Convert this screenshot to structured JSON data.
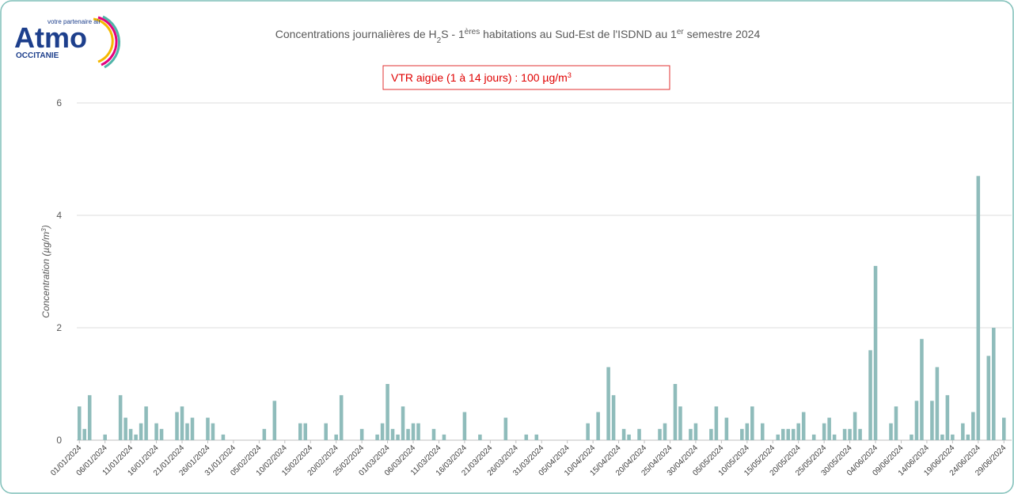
{
  "logo": {
    "name": "Atmo",
    "tagline": "votre partenaire air",
    "region": "OCCITANIE"
  },
  "chart_data": {
    "type": "bar",
    "title_parts": [
      "Concentrations journalières de H",
      "2",
      "S - 1",
      "ères",
      " habitations au Sud-Est de l'ISDND au 1",
      "er",
      " semestre 2024"
    ],
    "annotation_parts": [
      "VTR aigüe  (1 à 14 jours) : 100 µg/m",
      "3"
    ],
    "y_label_parts": [
      "Concentration (µg/m",
      "3",
      ")"
    ],
    "color": "#8fbcbb",
    "grid": true,
    "ylim": [
      0,
      6
    ],
    "yticks": [
      0,
      2,
      4,
      6
    ],
    "categories": [
      "01/01/2024",
      null,
      null,
      null,
      null,
      "06/01/2024",
      null,
      null,
      null,
      null,
      "11/01/2024",
      null,
      null,
      null,
      null,
      "16/01/2024",
      null,
      null,
      null,
      null,
      "21/01/2024",
      null,
      null,
      null,
      null,
      "26/01/2024",
      null,
      null,
      null,
      null,
      "31/01/2024",
      null,
      null,
      null,
      null,
      "05/02/2024",
      null,
      null,
      null,
      null,
      "10/02/2024",
      null,
      null,
      null,
      null,
      "15/02/2024",
      null,
      null,
      null,
      null,
      "20/02/2024",
      null,
      null,
      null,
      null,
      "25/02/2024",
      null,
      null,
      null,
      null,
      "01/03/2024",
      null,
      null,
      null,
      null,
      "06/03/2024",
      null,
      null,
      null,
      null,
      "11/03/2024",
      null,
      null,
      null,
      null,
      "16/03/2024",
      null,
      null,
      null,
      null,
      "21/03/2024",
      null,
      null,
      null,
      null,
      "26/03/2024",
      null,
      null,
      null,
      null,
      "31/03/2024",
      null,
      null,
      null,
      null,
      "05/04/2024",
      null,
      null,
      null,
      null,
      "10/04/2024",
      null,
      null,
      null,
      null,
      "15/04/2024",
      null,
      null,
      null,
      null,
      "20/04/2024",
      null,
      null,
      null,
      null,
      "25/04/2024",
      null,
      null,
      null,
      null,
      "30/04/2024",
      null,
      null,
      null,
      null,
      "05/05/2024",
      null,
      null,
      null,
      null,
      "10/05/2024",
      null,
      null,
      null,
      null,
      "15/05/2024",
      null,
      null,
      null,
      null,
      "20/05/2024",
      null,
      null,
      null,
      null,
      "25/05/2024",
      null,
      null,
      null,
      null,
      "30/05/2024",
      null,
      null,
      null,
      null,
      "04/06/2024",
      null,
      null,
      null,
      null,
      "09/06/2024",
      null,
      null,
      null,
      null,
      "14/06/2024",
      null,
      null,
      null,
      null,
      "19/06/2024",
      null,
      null,
      null,
      null,
      "24/06/2024",
      null,
      null,
      null,
      null,
      "29/06/2024",
      null
    ],
    "values": [
      0.6,
      0.2,
      0.8,
      0,
      0,
      0.1,
      0,
      0,
      0.8,
      0.4,
      0.2,
      0.1,
      0.3,
      0.6,
      0,
      0.3,
      0.2,
      0,
      0,
      0.5,
      0.6,
      0.3,
      0.4,
      0,
      0,
      0.4,
      0.3,
      0,
      0.1,
      0,
      0,
      0,
      0,
      0,
      0,
      0,
      0.2,
      0,
      0.7,
      0,
      0,
      0,
      0,
      0.3,
      0.3,
      0,
      0,
      0,
      0.3,
      0,
      0.1,
      0.8,
      0,
      0,
      0,
      0.2,
      0,
      0,
      0.1,
      0.3,
      1.0,
      0.2,
      0.1,
      0.6,
      0.2,
      0.3,
      0.3,
      0,
      0,
      0.2,
      0,
      0.1,
      0,
      0,
      0,
      0.5,
      0,
      0,
      0.1,
      0,
      0,
      0,
      0,
      0.4,
      0,
      0,
      0,
      0.1,
      0,
      0.1,
      0,
      0,
      0,
      0,
      0,
      0,
      0,
      0,
      0,
      0.3,
      0,
      0.5,
      0,
      1.3,
      0.8,
      0,
      0.2,
      0.1,
      0,
      0.2,
      0,
      0,
      0,
      0.2,
      0.3,
      0,
      1.0,
      0.6,
      0,
      0.2,
      0.3,
      0,
      0,
      0.2,
      0.6,
      0,
      0.4,
      0,
      0,
      0.2,
      0.3,
      0.6,
      0,
      0.3,
      0,
      0,
      0.1,
      0.2,
      0.2,
      0.2,
      0.3,
      0.5,
      0,
      0.1,
      0,
      0.3,
      0.4,
      0.1,
      0,
      0.2,
      0.2,
      0.5,
      0.2,
      0,
      1.6,
      3.1,
      0,
      0,
      0.3,
      0.6,
      0,
      0,
      0.1,
      0.7,
      1.8,
      0,
      0.7,
      1.3,
      0.1,
      0.8,
      0.1,
      0,
      0.3,
      0.1,
      0.5,
      4.7,
      0,
      1.5,
      2.0,
      0,
      0.4,
      0
    ]
  }
}
